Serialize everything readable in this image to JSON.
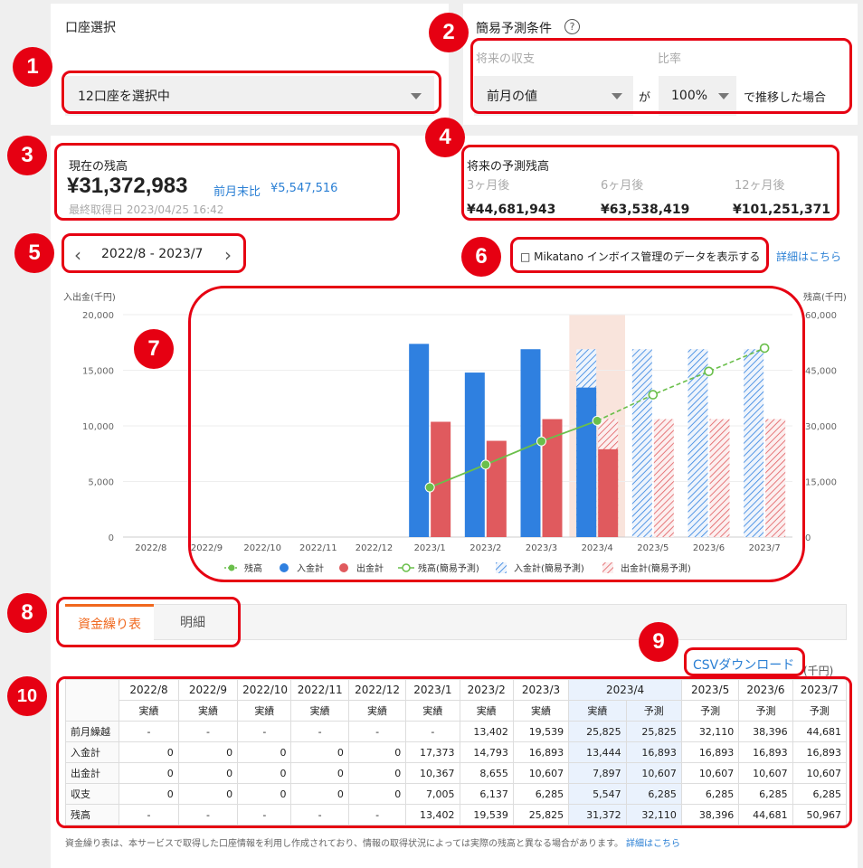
{
  "account": {
    "title": "口座選択",
    "selected": "12口座を選択中"
  },
  "forecast_cond": {
    "title": "簡易予測条件",
    "future_label": "将来の収支",
    "ratio_label": "比率",
    "basis_value": "前月の値",
    "ga": "が",
    "ratio_value": "100%",
    "suffix": "で推移した場合"
  },
  "current_balance": {
    "title": "現在の残高",
    "amount": "¥31,372,983",
    "compare_label": "前月末比",
    "compare_value": "¥5,547,516",
    "updated": "最終取得日 2023/04/25 16:42"
  },
  "future_balance": {
    "title": "将来の予測残高",
    "items": [
      {
        "label": "3ヶ月後",
        "value": "¥44,681,943"
      },
      {
        "label": "6ヶ月後",
        "value": "¥63,538,419"
      },
      {
        "label": "12ヶ月後",
        "value": "¥101,251,371"
      }
    ]
  },
  "period": {
    "label": "2022/8 - 2023/7"
  },
  "mikatano": {
    "label": "□ Mikatano インボイス管理のデータを表示する",
    "link": "詳細はこちら"
  },
  "tabs": {
    "cashflow": "資金繰り表",
    "detail": "明細"
  },
  "csv": {
    "label": "CSVダウンロード",
    "unit": "(千円)"
  },
  "badges": [
    "1",
    "2",
    "3",
    "4",
    "5",
    "6",
    "7",
    "8",
    "9",
    "10"
  ],
  "colors": {
    "accent_red": "#e60012",
    "bar_in": "#2f80e0",
    "bar_out": "#e05a5e",
    "balance": "#6abf4b",
    "tab_active": "#f0681e",
    "link": "#2a7fd4"
  },
  "chart_data": {
    "type": "bar",
    "y_left_label": "入出金(千円)",
    "y_right_label": "残高(千円)",
    "ylim_left": [
      0,
      20000
    ],
    "ylim_right": [
      0,
      60000
    ],
    "left_ticks": [
      "20,000",
      "15,000",
      "10,000",
      "5,000",
      "0"
    ],
    "right_ticks": [
      "60,000",
      "45,000",
      "30,000",
      "15,000",
      "0"
    ],
    "categories": [
      "2022/8",
      "2022/9",
      "2022/10",
      "2022/11",
      "2022/12",
      "2023/1",
      "2023/2",
      "2023/3",
      "2023/4",
      "2023/5",
      "2023/6",
      "2023/7"
    ],
    "series": [
      {
        "name": "入金計",
        "values": [
          0,
          0,
          0,
          0,
          0,
          17373,
          14793,
          16893,
          13444,
          null,
          null,
          null
        ]
      },
      {
        "name": "出金計",
        "values": [
          0,
          0,
          0,
          0,
          0,
          10367,
          8655,
          10607,
          7897,
          null,
          null,
          null
        ]
      },
      {
        "name": "残高",
        "values": [
          null,
          null,
          null,
          null,
          null,
          13402,
          19539,
          25825,
          31372,
          null,
          null,
          null
        ]
      },
      {
        "name": "入金計(簡易予測)",
        "values": [
          null,
          null,
          null,
          null,
          null,
          null,
          null,
          null,
          16893,
          16893,
          16893,
          16893
        ]
      },
      {
        "name": "出金計(簡易予測)",
        "values": [
          null,
          null,
          null,
          null,
          null,
          null,
          null,
          null,
          10607,
          10607,
          10607,
          10607
        ]
      },
      {
        "name": "残高(簡易予測)",
        "values": [
          null,
          null,
          null,
          null,
          null,
          null,
          null,
          null,
          31372,
          38396,
          44681,
          50967
        ]
      }
    ],
    "highlight_category": "2023/4",
    "legend": [
      {
        "name": "残高",
        "kind": "line"
      },
      {
        "name": "入金計",
        "kind": "dot-blue"
      },
      {
        "name": "出金計",
        "kind": "dot-red"
      },
      {
        "name": "残高(簡易予測)",
        "kind": "line-open"
      },
      {
        "name": "入金計(簡易予測)",
        "kind": "hatch-blue"
      },
      {
        "name": "出金計(簡易予測)",
        "kind": "hatch-red"
      }
    ]
  },
  "table": {
    "months": [
      "2022/8",
      "2022/9",
      "2022/10",
      "2022/11",
      "2022/12",
      "2023/1",
      "2023/2",
      "2023/3",
      "2023/4",
      "2023/5",
      "2023/6",
      "2023/7"
    ],
    "sub": [
      "実績",
      "実績",
      "実績",
      "実績",
      "実績",
      "実績",
      "実績",
      "実績",
      "実績",
      "予測",
      "予測",
      "予測",
      "予測"
    ],
    "rows": [
      {
        "label": "前月繰越",
        "cells": [
          "-",
          "-",
          "-",
          "-",
          "-",
          "-",
          "13,402",
          "19,539",
          "25,825",
          "25,825",
          "32,110",
          "38,396",
          "44,681"
        ]
      },
      {
        "label": "入金計",
        "cells": [
          "0",
          "0",
          "0",
          "0",
          "0",
          "17,373",
          "14,793",
          "16,893",
          "13,444",
          "16,893",
          "16,893",
          "16,893",
          "16,893"
        ]
      },
      {
        "label": "出金計",
        "cells": [
          "0",
          "0",
          "0",
          "0",
          "0",
          "10,367",
          "8,655",
          "10,607",
          "7,897",
          "10,607",
          "10,607",
          "10,607",
          "10,607"
        ]
      },
      {
        "label": "収支",
        "cells": [
          "0",
          "0",
          "0",
          "0",
          "0",
          "7,005",
          "6,137",
          "6,285",
          "5,547",
          "6,285",
          "6,285",
          "6,285",
          "6,285"
        ]
      },
      {
        "label": "残高",
        "cells": [
          "-",
          "-",
          "-",
          "-",
          "-",
          "13,402",
          "19,539",
          "25,825",
          "31,372",
          "32,110",
          "38,396",
          "44,681",
          "50,967"
        ]
      }
    ]
  },
  "footer": {
    "note": "資金繰り表は、本サービスで取得した口座情報を利用し作成されており、情報の取得状況によっては実際の残高と異なる場合があります。",
    "link": "詳細はこちら"
  }
}
